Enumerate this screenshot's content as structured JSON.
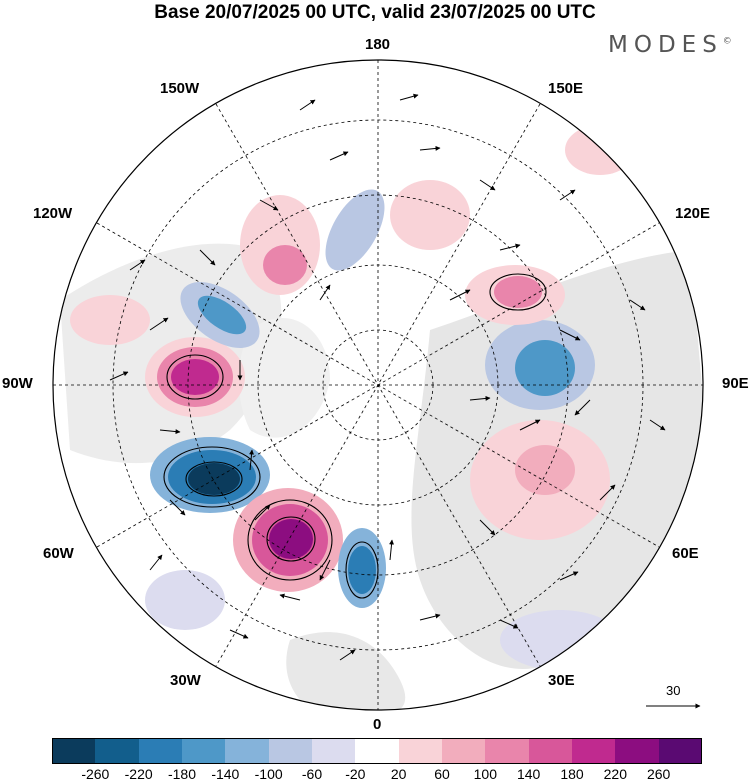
{
  "title": "Base 20/07/2025 00 UTC, valid 23/07/2025 00 UTC",
  "brand": "MODES",
  "brand_mark": "©",
  "longitude_labels": {
    "top": "180",
    "bottom": "0",
    "left": "90W",
    "right": "90E",
    "nw1": "150W",
    "nw2": "120W",
    "ne1": "150E",
    "ne2": "120E",
    "sw1": "60W",
    "sw2": "30W",
    "se1": "60E",
    "se2": "30E"
  },
  "vector_reference": "30",
  "colorbar": {
    "tick_labels": [
      "-260",
      "-220",
      "-180",
      "-140",
      "-100",
      "-60",
      "-20",
      "20",
      "60",
      "100",
      "140",
      "180",
      "220",
      "260"
    ],
    "colors": [
      "#0b3b5c",
      "#125e8c",
      "#2b7db5",
      "#4e98c8",
      "#85b3da",
      "#b9c7e3",
      "#dcdcef",
      "#ffffff",
      "#f9d3d8",
      "#f2adbd",
      "#e985ab",
      "#d8579a",
      "#c02a8f",
      "#8c0d80",
      "#5a0a72"
    ]
  },
  "map_data": {
    "type": "polar-stereographic",
    "hemisphere": "north",
    "field": "anomaly",
    "features": [
      {
        "name": "positive-anomaly-north-america-west",
        "sign": "positive",
        "peak": 200
      },
      {
        "name": "negative-anomaly-labrador",
        "sign": "negative",
        "peak": -240
      },
      {
        "name": "positive-anomaly-north-atlantic",
        "sign": "positive",
        "peak": 240
      },
      {
        "name": "negative-anomaly-western-europe",
        "sign": "negative",
        "peak": -160
      },
      {
        "name": "negative-anomaly-alaska",
        "sign": "negative",
        "peak": -140
      },
      {
        "name": "negative-anomaly-central-siberia",
        "sign": "negative",
        "peak": -120
      },
      {
        "name": "positive-anomaly-eastern-siberia",
        "sign": "positive",
        "peak": 120
      },
      {
        "name": "positive-anomaly-west-siberia",
        "sign": "positive",
        "peak": 80
      }
    ]
  }
}
